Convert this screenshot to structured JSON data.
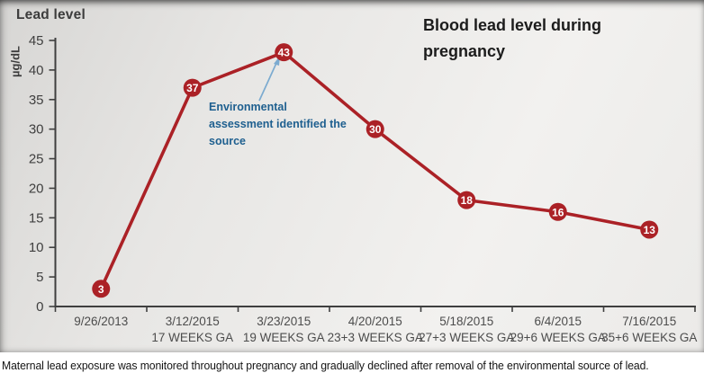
{
  "slide": {
    "corner_title": "Lead level",
    "unit_label": "µg/dL",
    "chart_title": "Blood lead level during pregnancy"
  },
  "annotation": {
    "lines": [
      "Environmental",
      "assessment identified the",
      "source"
    ],
    "text_color": "#1e5f8f",
    "arrow_color": "#7cabd0"
  },
  "caption": "Maternal lead exposure was monitored throughout pregnancy and gradually declined after removal of the environmental source of lead.",
  "chart_data": {
    "type": "line",
    "title": "Blood lead level during pregnancy",
    "corner_title": "Lead level",
    "ylabel": "µg/dL",
    "xlabel": "",
    "categories": [
      "9/26/2013",
      "3/12/2015",
      "3/23/2015",
      "4/20/2015",
      "5/18/2015",
      "6/4/2015",
      "7/16/2015"
    ],
    "category_sublabels": [
      "",
      "17 WEEKS GA",
      "19 WEEKS GA",
      "23+3 WEEKS GA",
      "27+3 WEEKS GA",
      "29+6 WEEKS GA",
      "35+6 WEEKS GA"
    ],
    "values": [
      3,
      37,
      43,
      30,
      18,
      16,
      13
    ],
    "ylim": [
      0,
      45
    ],
    "yticks": [
      0,
      5,
      10,
      15,
      20,
      25,
      30,
      35,
      40,
      45
    ],
    "grid": false,
    "legend": "none",
    "line_color": "#ab2126",
    "marker_label_color": "#ffffff",
    "axis_color": "#3f3f3f",
    "tick_label_color": "#4c4c4c",
    "annotation": {
      "text": "Environmental assessment identified the source",
      "target_category": "3/23/2015",
      "target_value": 43
    }
  }
}
